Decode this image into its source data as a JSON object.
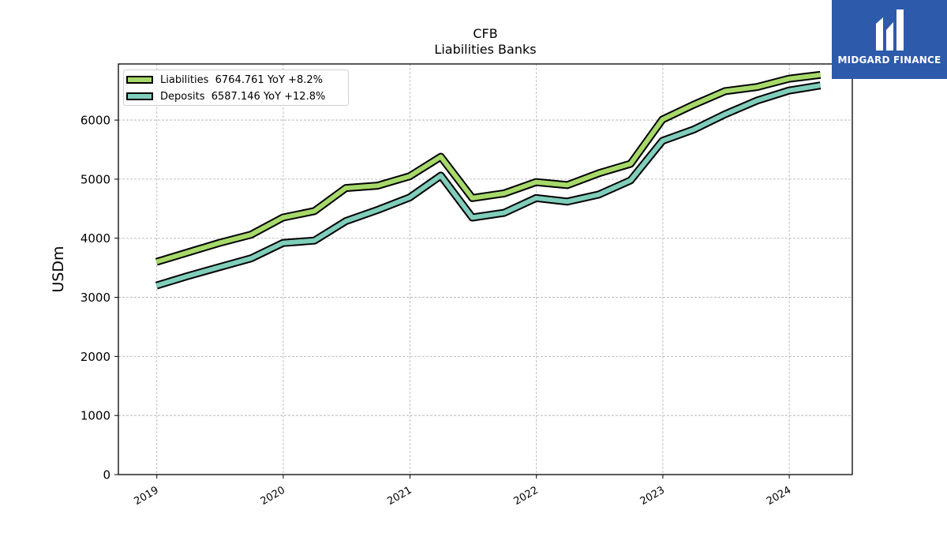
{
  "chart_data": {
    "type": "line",
    "title": "CFB",
    "subtitle": "Liabilities Banks",
    "ylabel": "USDm",
    "xlabel": "",
    "ylim": [
      0,
      6950
    ],
    "yticks": [
      0,
      1000,
      2000,
      3000,
      4000,
      5000,
      6000
    ],
    "xlim": [
      "2018-09-12",
      "2024-07-01"
    ],
    "xticks": [
      "2019",
      "2020",
      "2021",
      "2022",
      "2023",
      "2024"
    ],
    "grid": true,
    "legend_position": "upper-left",
    "x": [
      "2018-12-31",
      "2019-03-31",
      "2019-06-30",
      "2019-09-30",
      "2019-12-31",
      "2020-03-31",
      "2020-06-30",
      "2020-09-30",
      "2020-12-31",
      "2021-03-31",
      "2021-06-30",
      "2021-09-30",
      "2021-12-31",
      "2022-03-31",
      "2022-06-30",
      "2022-09-30",
      "2022-12-31",
      "2023-03-31",
      "2023-06-30",
      "2023-09-30",
      "2023-12-31",
      "2024-03-31"
    ],
    "series": [
      {
        "name": "Liabilities",
        "legend_label": "Liabilities  6764.761 YoY +8.2%",
        "color": "#a6d96a",
        "values": [
          3600,
          3760,
          3920,
          4060,
          4350,
          4460,
          4850,
          4890,
          5050,
          5380,
          4680,
          4760,
          4950,
          4900,
          5100,
          5260,
          6010,
          6260,
          6490,
          6560,
          6700,
          6765
        ]
      },
      {
        "name": "Deposits",
        "legend_label": "Deposits  6587.146 YoY +12.8%",
        "color": "#7fcdbb",
        "values": [
          3200,
          3360,
          3510,
          3660,
          3920,
          3960,
          4290,
          4480,
          4690,
          5060,
          4350,
          4430,
          4680,
          4620,
          4740,
          4980,
          5650,
          5840,
          6100,
          6330,
          6500,
          6587
        ]
      }
    ]
  },
  "logo": {
    "text": "MIDGARD FINANCE",
    "bg_color": "#2d5aab"
  }
}
